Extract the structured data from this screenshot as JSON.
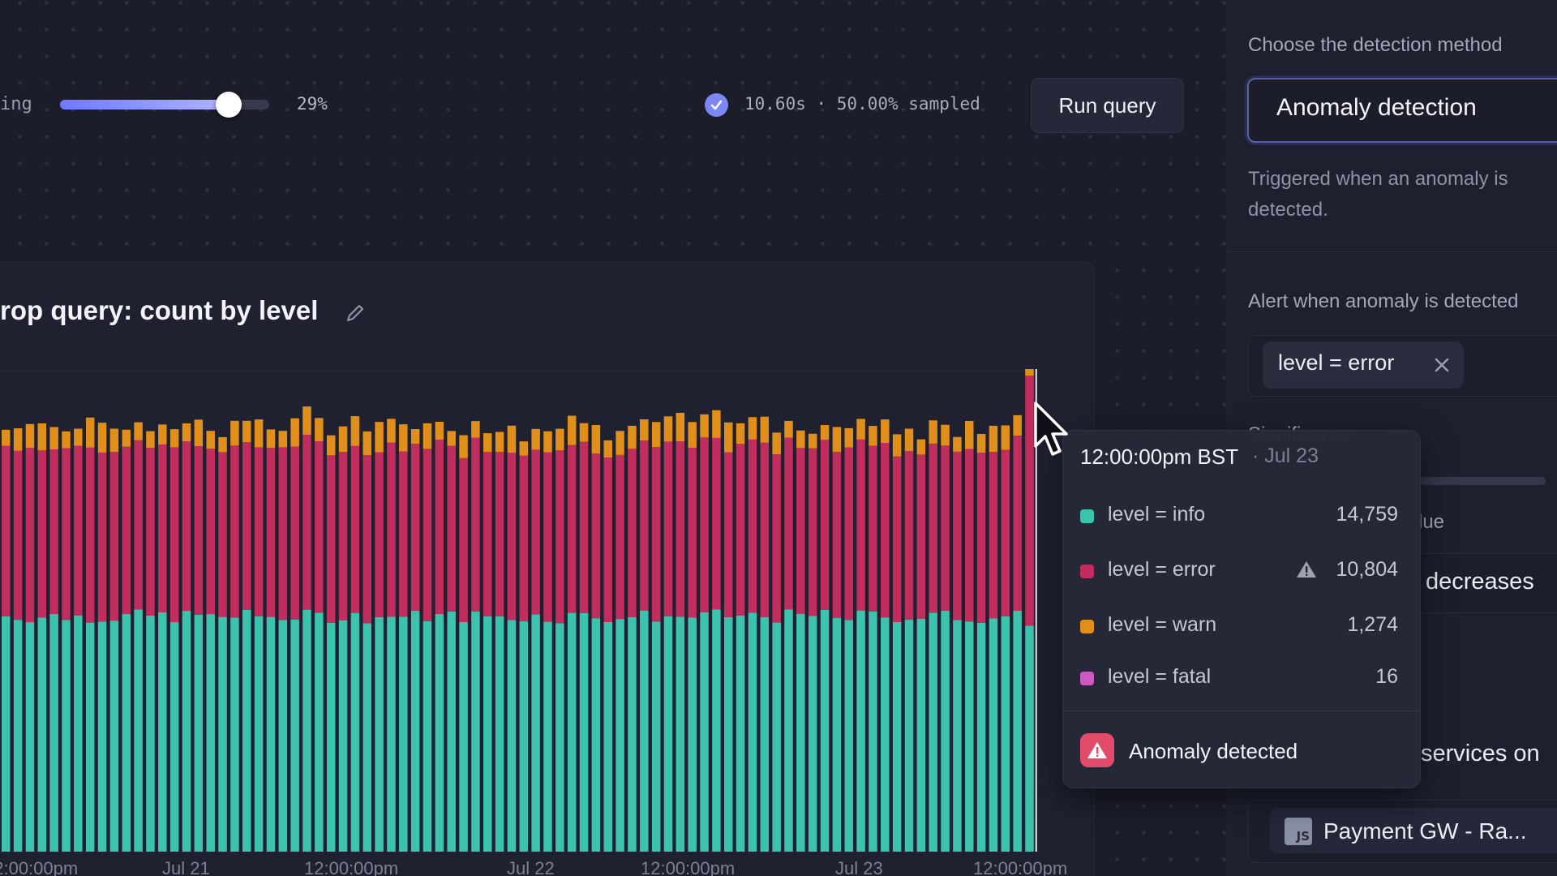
{
  "toolbar": {
    "sampling_label_partial": "ing",
    "sampling_value": "29%",
    "sampling_fraction": 0.29,
    "status_text": "10.60s · 50.00% sampled",
    "run_query_label": "Run query"
  },
  "chart": {
    "title": "rop query: count by level",
    "x_tick_labels": [
      "12:00:00pm",
      "Jul 21",
      "12:00:00pm",
      "Jul 22",
      "12:00:00pm",
      "Jul 23",
      "12:00:00pm"
    ]
  },
  "chart_data": {
    "type": "bar",
    "stacked": true,
    "title": "rop query: count by level",
    "series_order": [
      "level = info",
      "level = error",
      "level = warn",
      "level = fatal"
    ],
    "colors": {
      "level = info": "#3cc3ad",
      "level = error": "#c12d5c",
      "level = warn": "#e08f1b",
      "level = fatal": "#cc5bc0"
    },
    "bar_count": 86,
    "typical_bar": {
      "level = info": 14759,
      "level = error": 10804,
      "level = warn": 1274,
      "level = fatal": 16
    },
    "highlighted_bar": {
      "time": "12:00:00pm BST",
      "date": "Jul 23",
      "values": {
        "level = info": 14759,
        "level = error": 10804,
        "level = warn": 1274,
        "level = fatal": 16
      }
    }
  },
  "tooltip": {
    "time": "12:00:00pm BST",
    "date": "· Jul 23",
    "rows": [
      {
        "label": "level = info",
        "value": "14,759",
        "color": "#3cc3ad"
      },
      {
        "label": "level = error",
        "value": "10,804",
        "color": "#c12d5c"
      },
      {
        "label": "level = warn",
        "value": "1,274",
        "color": "#e08f1b"
      },
      {
        "label": "level = fatal",
        "value": "16",
        "color": "#cc5bc0"
      }
    ],
    "anomaly_label": "Anomaly detected"
  },
  "right_panel": {
    "method_label": "Choose the detection method",
    "method_value": "Anomaly detection",
    "method_description": "Triggered when an anomaly is detected.",
    "alert_label": "Alert when anomaly is detected",
    "filter_chip": "level = error",
    "partial_significance": "Significance",
    "partial_value": "lue",
    "partial_direction": "decreases",
    "partial_services": "services on",
    "service_chip": "Payment GW - Ra...",
    "service_icon_text": "JS"
  }
}
